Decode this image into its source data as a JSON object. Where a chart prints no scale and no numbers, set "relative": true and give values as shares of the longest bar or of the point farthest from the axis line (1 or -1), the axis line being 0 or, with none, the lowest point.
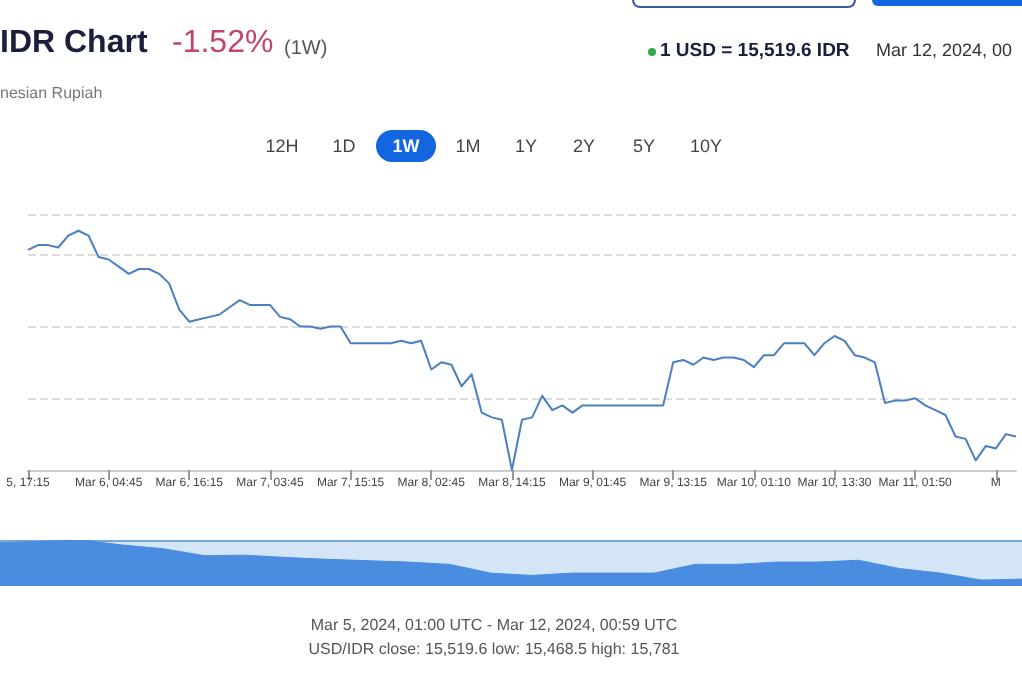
{
  "chart_data": [
    {
      "type": "line",
      "title": "IDR Chart",
      "annotations": [
        "-1.52%",
        "(1W)",
        "nesian Rupiah",
        "1 USD = 15,519.6 IDR",
        "Mar 12, 2024, 00",
        "12H",
        "1D",
        "1W",
        "1M",
        "1Y",
        "2Y",
        "5Y",
        "10Y",
        "Mar 5, 2024, 01:00 UTC - Mar 12, 2024, 00:59 UTC",
        "USD/IDR close: 15,519.6 low: 15,468.5 high: 15,781"
      ],
      "categories": [
        "5, 17:15",
        null,
        null,
        null,
        null,
        null,
        null,
        null,
        "Mar 6, 04:45",
        null,
        null,
        null,
        null,
        null,
        null,
        null,
        "Mar 6, 16:15",
        null,
        null,
        null,
        null,
        null,
        null,
        null,
        "Mar 7, 03:45",
        null,
        null,
        null,
        null,
        null,
        null,
        null,
        "Mar 7, 15:15",
        null,
        null,
        null,
        null,
        null,
        null,
        null,
        "Mar 8, 02:45",
        null,
        null,
        null,
        null,
        null,
        null,
        null,
        "Mar 8, 14:15",
        null,
        null,
        null,
        null,
        null,
        null,
        null,
        "Mar 9, 01:45",
        null,
        null,
        null,
        null,
        null,
        null,
        null,
        "Mar 9, 13:15",
        null,
        null,
        null,
        null,
        null,
        null,
        null,
        "Mar 10, 01:10",
        null,
        null,
        null,
        null,
        null,
        null,
        null,
        "Mar 10, 13:30",
        null,
        null,
        null,
        null,
        null,
        null,
        null,
        "Mar 11, 01:50",
        null,
        null,
        null,
        null,
        null,
        null,
        null,
        "M",
        null,
        null
      ],
      "values": [
        0.92,
        0.94,
        0.94,
        0.93,
        0.98,
        1,
        0.98,
        0.89,
        0.88,
        0.85,
        0.82,
        0.84,
        0.84,
        0.82,
        0.78,
        0.67,
        0.62,
        0.63,
        0.64,
        0.65,
        0.68,
        0.71,
        0.69,
        0.69,
        0.69,
        0.64,
        0.63,
        0.6,
        0.6,
        0.59,
        0.6,
        0.6,
        0.53,
        0.53,
        0.53,
        0.53,
        0.53,
        0.54,
        0.53,
        0.54,
        0.42,
        0.45,
        0.44,
        0.35,
        0.4,
        0.24,
        0.22,
        0.21,
        0,
        0.21,
        0.22,
        0.31,
        0.25,
        0.27,
        0.24,
        0.27,
        0.27,
        0.27,
        0.27,
        0.27,
        0.27,
        0.27,
        0.27,
        0.27,
        0.45,
        0.46,
        0.44,
        0.47,
        0.46,
        0.47,
        0.47,
        0.46,
        0.43,
        0.48,
        0.48,
        0.53,
        0.53,
        0.53,
        0.48,
        0.53,
        0.56,
        0.54,
        0.48,
        0.47,
        0.45,
        0.28,
        0.29,
        0.29,
        0.3,
        0.27,
        0.25,
        0.23,
        0.14,
        0.13,
        0.04,
        0.1,
        0.09,
        0.15,
        0.14
      ],
      "color": "#4a7fc1",
      "relative": true,
      "grid": "y",
      "marker": "none",
      "line_style": "solid"
    },
    {
      "type": "area",
      "categories": [
        null,
        null,
        null,
        null,
        null,
        null,
        null,
        null,
        null,
        null,
        null,
        null,
        null,
        null,
        null,
        null,
        null,
        null,
        null,
        null,
        null,
        null,
        null,
        null,
        null,
        null
      ],
      "values": [
        0.94,
        0.97,
        1,
        0.89,
        0.81,
        0.66,
        0.67,
        0.62,
        0.58,
        0.55,
        0.52,
        0.47,
        0.28,
        0.23,
        0.28,
        0.28,
        0.28,
        0.47,
        0.47,
        0.52,
        0.52,
        0.56,
        0.38,
        0.28,
        0.13,
        0.15
      ],
      "color": "#4a8de0",
      "relative": true,
      "tick_labels": false
    }
  ]
}
